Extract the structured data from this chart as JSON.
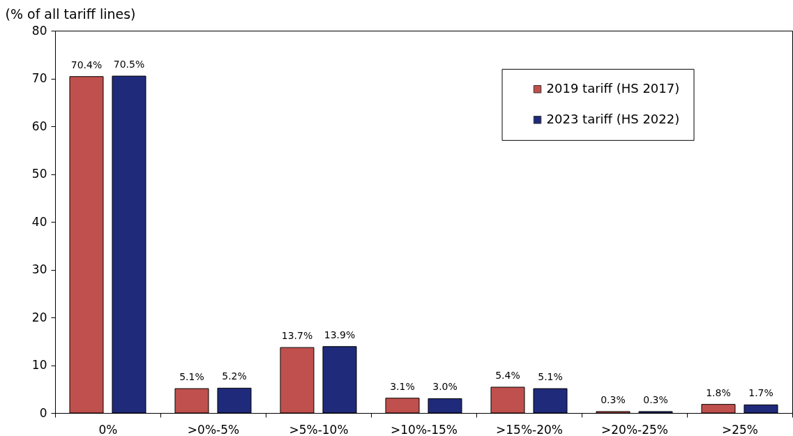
{
  "chart_data": {
    "type": "bar",
    "ylabel": "(% of all tariff lines)",
    "categories": [
      "0%",
      ">0%-5%",
      ">5%-10%",
      ">10%-15%",
      ">15%-20%",
      ">20%-25%",
      ">25%"
    ],
    "series": [
      {
        "name": "2019 tariff (HS 2017)",
        "color": "#c0504d",
        "values": [
          70.4,
          5.1,
          13.7,
          3.1,
          5.4,
          0.3,
          1.8
        ],
        "value_labels": [
          "70.4%",
          "5.1%",
          "13.7%",
          "3.1%",
          "5.4%",
          "0.3%",
          "1.8%"
        ]
      },
      {
        "name": "2023 tariff (HS 2022)",
        "color": "#1f2a7a",
        "values": [
          70.5,
          5.2,
          13.9,
          3.0,
          5.1,
          0.3,
          1.7
        ],
        "value_labels": [
          "70.5%",
          "5.2%",
          "13.9%",
          "3.0%",
          "5.1%",
          "0.3%",
          "1.7%"
        ]
      }
    ],
    "ylim": [
      0,
      80
    ],
    "yticks": [
      0,
      10,
      20,
      30,
      40,
      50,
      60,
      70,
      80
    ],
    "legend": "top right"
  }
}
